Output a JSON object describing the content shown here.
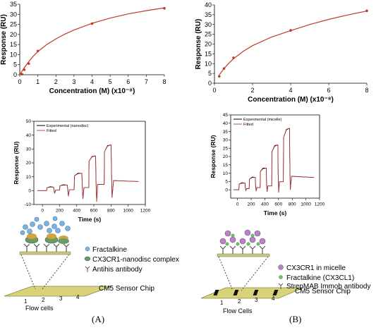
{
  "panels": {
    "A": {
      "label": "(A)",
      "schematic": {
        "legend": [
          "Fractalkine",
          "CX3CR1-nanodisc complex",
          "Antihis antibody"
        ],
        "chip_label": "CM5 Sensor Chip",
        "flow_label": "Flow cells",
        "cell_numbers": [
          "1",
          "2",
          "3",
          "4"
        ]
      }
    },
    "B": {
      "label": "(B)",
      "schematic": {
        "legend": [
          "CX3CR1 in micelle",
          "Fractalkine (CX3CL1)",
          "StrepMAB Immob antibody"
        ],
        "chip_label": "CM5 Sensor Chip",
        "flow_label": "Flow Cells",
        "cell_numbers": [
          "1",
          "2",
          "3",
          "4"
        ]
      }
    }
  },
  "chart_data": [
    {
      "id": "A-fit",
      "type": "line",
      "xlabel": "Concentration (M) (x10⁻⁸)",
      "ylabel": "Response (RU)",
      "xlim": [
        0,
        8
      ],
      "ylim": [
        0,
        35
      ],
      "xticks": [
        0,
        1,
        2,
        3,
        4,
        5,
        6,
        7,
        8
      ],
      "yticks": [
        0,
        5,
        10,
        15,
        20,
        25,
        30,
        35
      ],
      "points": {
        "x": [
          0.125,
          0.25,
          0.5,
          1,
          4,
          8
        ],
        "y": [
          0.3,
          2.5,
          5.5,
          11.8,
          25.4,
          33
        ]
      },
      "fit": {
        "x": [
          0,
          0.125,
          0.25,
          0.5,
          0.75,
          1,
          1.5,
          2,
          2.5,
          3,
          4,
          5,
          6,
          7,
          8
        ],
        "y": [
          0,
          1.8,
          3.5,
          6.5,
          9.2,
          11.5,
          15,
          17.8,
          20.2,
          22.2,
          25.5,
          28.1,
          30.2,
          31.8,
          33.2
        ]
      },
      "color": "#c0392b"
    },
    {
      "id": "B-fit",
      "type": "line",
      "xlabel": "Concentration (M) (x10⁻⁸)",
      "ylabel": "Response (RU)",
      "xlim": [
        0,
        8
      ],
      "ylim": [
        0,
        40
      ],
      "xticks": [
        0,
        2,
        4,
        6,
        8
      ],
      "yticks": [
        0,
        5,
        10,
        15,
        20,
        25,
        30,
        35,
        40
      ],
      "points": {
        "x": [
          0.25,
          0.5,
          1,
          4,
          8
        ],
        "y": [
          3.5,
          7.5,
          13,
          27,
          37
        ]
      },
      "fit": {
        "x": [
          0.25,
          0.5,
          0.75,
          1,
          1.5,
          2,
          3,
          4,
          5,
          6,
          7,
          8
        ],
        "y": [
          4.2,
          7.5,
          10.2,
          12.5,
          16.2,
          19.2,
          23.6,
          26.9,
          30,
          32.6,
          34.9,
          36.9
        ]
      },
      "color": "#c0392b"
    },
    {
      "id": "A-sensorgram",
      "type": "line",
      "xlabel": "Time (s)",
      "ylabel": "Response (RU)",
      "xlim": [
        -100,
        1200
      ],
      "ylim": [
        -10,
        50
      ],
      "xticks": [
        0,
        200,
        400,
        600,
        800,
        1000,
        1200
      ],
      "yticks": [
        -10,
        0,
        10,
        20,
        30,
        40,
        50
      ],
      "legend": [
        "Experimental (nanodisc)",
        "Fitted"
      ],
      "legend_position": "top-left",
      "injections": [
        {
          "start": 50,
          "end": 130,
          "plateau": 2.5
        },
        {
          "start": 200,
          "end": 290,
          "plateau": 4
        },
        {
          "start": 370,
          "end": 460,
          "plateau": 12.5
        },
        {
          "start": 540,
          "end": 620,
          "plateau": 25
        },
        {
          "start": 720,
          "end": 800,
          "plateau": 33
        }
      ],
      "series_colors": [
        "#000000",
        "#d04040"
      ]
    },
    {
      "id": "B-sensorgram",
      "type": "line",
      "xlabel": "Time (s)",
      "ylabel": "Response (RU)",
      "xlim": [
        -100,
        1200
      ],
      "ylim": [
        -5,
        45
      ],
      "xticks": [
        0,
        200,
        400,
        600,
        800,
        1000,
        1200
      ],
      "yticks": [
        0,
        5,
        10,
        15,
        20,
        25,
        30,
        35,
        40,
        45
      ],
      "legend": [
        "Experimental (micelle)",
        "Fitted"
      ],
      "legend_position": "top-left",
      "injections": [
        {
          "start": 20,
          "end": 110,
          "plateau": 4
        },
        {
          "start": 170,
          "end": 260,
          "plateau": 7.5
        },
        {
          "start": 330,
          "end": 420,
          "plateau": 13
        },
        {
          "start": 500,
          "end": 590,
          "plateau": 27
        },
        {
          "start": 670,
          "end": 760,
          "plateau": 37
        }
      ],
      "series_colors": [
        "#000000",
        "#d04040"
      ]
    }
  ]
}
